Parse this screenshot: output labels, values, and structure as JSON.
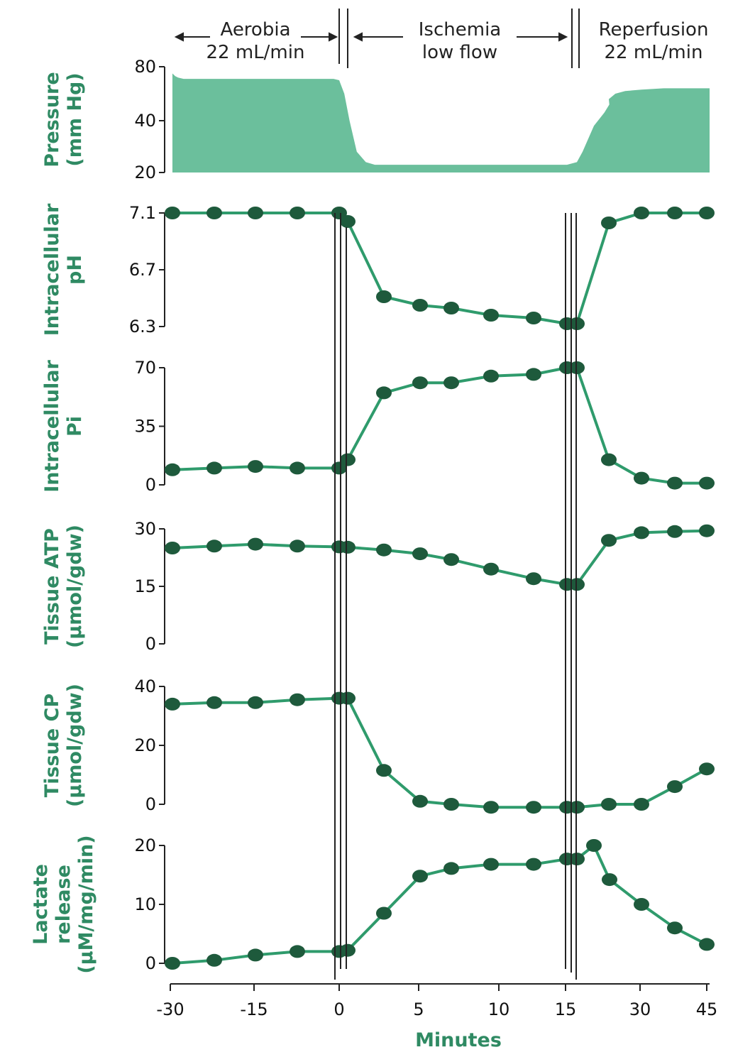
{
  "phases": [
    {
      "line1": "Aerobia",
      "line2": "22 mL/min"
    },
    {
      "line1": "Ischemia",
      "line2": "low flow"
    },
    {
      "line1": "Reperfusion",
      "line2": "22 mL/min"
    }
  ],
  "colors": {
    "marker": "#1e5a3c",
    "line": "#2f9b6c",
    "fill": "#6bbf9c",
    "label": "#2f8a63",
    "axis": "#222222"
  },
  "chart_data": {
    "type": "line",
    "xlabel": "Minutes",
    "x_ticks": [
      "-30",
      "-15",
      "0",
      "5",
      "10",
      "15",
      "30",
      "45"
    ],
    "x": [
      -30,
      -22.5,
      -15,
      -7.5,
      0,
      0.5,
      2.5,
      5,
      7.5,
      10,
      12.5,
      15,
      15.5,
      20,
      30,
      37.5,
      45
    ],
    "phase_boundaries": [
      0,
      15
    ],
    "panels": [
      {
        "id": "pressure",
        "type": "area",
        "ylabel_lines": [
          "Pressure",
          "(mm Hg)"
        ],
        "y_ticks": [
          "80",
          "40",
          "20"
        ],
        "x": [
          -30,
          -29.5,
          -29,
          -28,
          -1,
          0,
          0.3,
          0.6,
          1,
          1.5,
          2,
          5,
          10,
          14.5,
          15,
          15.5,
          16,
          17,
          18,
          19,
          20,
          22,
          25,
          30,
          35,
          45
        ],
        "values": [
          75,
          73,
          72,
          71,
          71,
          70,
          60,
          40,
          28,
          24,
          23,
          23,
          23,
          23,
          23,
          24,
          28,
          38,
          46,
          52,
          56,
          60,
          62,
          63,
          64,
          64
        ]
      },
      {
        "id": "ph",
        "type": "line",
        "ylabel_lines": [
          "Intracellular",
          "pH"
        ],
        "y_ticks": [
          "7.1",
          "6.7",
          "6.3"
        ],
        "values": [
          7.1,
          7.1,
          7.1,
          7.1,
          7.1,
          7.04,
          6.51,
          6.45,
          6.43,
          6.38,
          6.36,
          6.32,
          6.32,
          7.03,
          7.1,
          7.1,
          7.1
        ]
      },
      {
        "id": "pi",
        "type": "line",
        "ylabel_lines": [
          "Intracellular",
          "Pi"
        ],
        "y_ticks": [
          "70",
          "35",
          "0"
        ],
        "values": [
          9,
          10,
          11,
          10,
          10,
          15,
          55,
          61,
          61,
          65,
          66,
          70,
          70,
          15,
          4,
          1,
          1
        ]
      },
      {
        "id": "atp",
        "type": "line",
        "ylabel_lines": [
          "Tissue ATP",
          "(µmol/gdw)"
        ],
        "y_ticks": [
          "30",
          "15",
          "0"
        ],
        "values": [
          25,
          25.5,
          26,
          25.5,
          25.3,
          25.2,
          24.5,
          23.5,
          22,
          19.5,
          17,
          15.5,
          15.5,
          27,
          29,
          29.3,
          29.5
        ]
      },
      {
        "id": "cp",
        "type": "line",
        "ylabel_lines": [
          "Tissue CP",
          "(µmol/gdw)"
        ],
        "y_ticks": [
          "40",
          "20",
          "0"
        ],
        "values": [
          34,
          34.5,
          34.5,
          35.5,
          36,
          36,
          11.5,
          1,
          0,
          -1,
          -1,
          -1,
          -1,
          0,
          0,
          6,
          12
        ]
      },
      {
        "id": "lactate",
        "type": "line",
        "ylabel_lines": [
          "Lactate",
          "release",
          "(µM/mg/min)"
        ],
        "y_ticks": [
          "20",
          "10",
          "0"
        ],
        "x": [
          -30,
          -22.5,
          -15,
          -7.5,
          0,
          0.5,
          2.5,
          5,
          7.5,
          10,
          12.5,
          15,
          15.5,
          17,
          18.5,
          30,
          37.5,
          45
        ],
        "values": [
          0,
          0.5,
          1.4,
          2,
          2,
          2.2,
          8.5,
          14.8,
          16.1,
          16.8,
          16.8,
          17.7,
          17.7,
          20,
          14.2,
          10,
          6,
          3.2
        ]
      }
    ]
  }
}
